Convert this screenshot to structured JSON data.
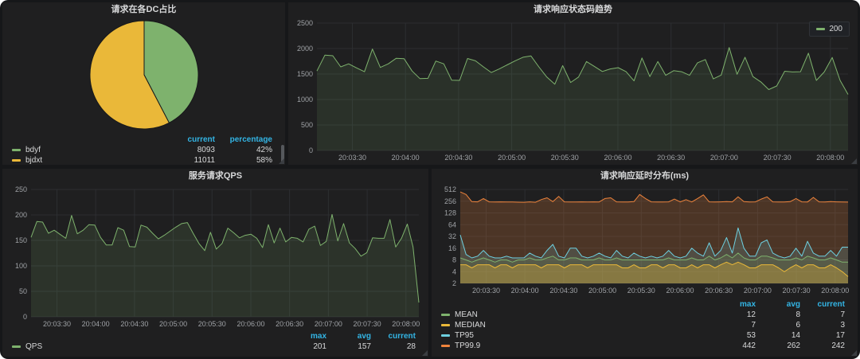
{
  "colors": {
    "background": "#161719",
    "panel": "#1f1f20",
    "grid": "#2c2e31",
    "axis_text": "#9fa2a6",
    "title_text": "#d8d9da",
    "legend_header": "#33b5e5",
    "green": "#7EB26D",
    "yellow": "#EAB839",
    "blue": "#6ED0E0",
    "orange": "#EF843C"
  },
  "panels": {
    "pie": {
      "title": "请求在各DC占比",
      "legend": {
        "headers": [
          "current",
          "percentage"
        ],
        "rows": [
          {
            "label": "bdyf",
            "color": "#7EB26D",
            "values": [
              "8093",
              "42%"
            ]
          },
          {
            "label": "bjdxt",
            "color": "#EAB839",
            "values": [
              "11011",
              "58%"
            ]
          }
        ]
      }
    },
    "status": {
      "title": "请求响应状态码趋势",
      "legend_items": [
        {
          "label": "200",
          "color": "#7EB26D"
        }
      ]
    },
    "qps": {
      "title": "服务请求QPS",
      "legend": {
        "headers": [
          "max",
          "avg",
          "current"
        ],
        "rows": [
          {
            "label": "QPS",
            "color": "#7EB26D",
            "values": [
              "201",
              "157",
              "28"
            ]
          }
        ]
      }
    },
    "latency": {
      "title": "请求响应延时分布(ms)",
      "legend": {
        "headers": [
          "max",
          "avg",
          "current"
        ],
        "rows": [
          {
            "label": "MEAN",
            "color": "#7EB26D",
            "values": [
              "12",
              "8",
              "7"
            ]
          },
          {
            "label": "MEDIAN",
            "color": "#EAB839",
            "values": [
              "7",
              "6",
              "3"
            ]
          },
          {
            "label": "TP95",
            "color": "#6ED0E0",
            "values": [
              "53",
              "14",
              "17"
            ]
          },
          {
            "label": "TP99.9",
            "color": "#EF843C",
            "values": [
              "442",
              "262",
              "242"
            ]
          }
        ]
      }
    }
  },
  "chart_data": [
    {
      "id": "pie_dc",
      "type": "pie",
      "title": "请求在各DC占比",
      "labels": [
        "bdyf",
        "bjdxt"
      ],
      "values": [
        8093,
        11011
      ],
      "percentages": [
        42,
        58
      ],
      "colors": [
        "#7EB26D",
        "#EAB839"
      ],
      "legend_position": "bottom-table"
    },
    {
      "id": "status_200",
      "type": "line",
      "title": "请求响应状态码趋势",
      "yscale": "linear",
      "ylim": [
        0,
        2500
      ],
      "yticks": [
        0,
        500,
        1000,
        1500,
        2000,
        2500
      ],
      "grid": true,
      "legend_position": "top-right-box",
      "x_ticks": [
        "20:03:30",
        "20:04:00",
        "20:04:30",
        "20:05:00",
        "20:05:30",
        "20:06:00",
        "20:06:30",
        "20:07:00",
        "20:07:30",
        "20:08:00"
      ],
      "series": [
        {
          "name": "200",
          "color": "#7EB26D",
          "fill_opacity": 0.12,
          "values": [
            1560,
            1870,
            1860,
            1640,
            1700,
            1620,
            1545,
            1990,
            1630,
            1700,
            1810,
            1800,
            1560,
            1410,
            1415,
            1755,
            1700,
            1380,
            1375,
            1805,
            1760,
            1640,
            1530,
            1600,
            1680,
            1760,
            1830,
            1855,
            1640,
            1440,
            1300,
            1665,
            1335,
            1440,
            1745,
            1650,
            1550,
            1600,
            1625,
            1545,
            1365,
            1815,
            1450,
            1745,
            1475,
            1565,
            1545,
            1475,
            1720,
            1785,
            1405,
            1480,
            2020,
            1495,
            1830,
            1450,
            1345,
            1195,
            1265,
            1555,
            1540,
            1545,
            1910,
            1375,
            1540,
            1825,
            1375,
            1100
          ]
        }
      ]
    },
    {
      "id": "qps",
      "type": "line",
      "title": "服务请求QPS",
      "yscale": "linear",
      "ylim": [
        0,
        250
      ],
      "yticks": [
        0,
        50,
        100,
        150,
        200,
        250
      ],
      "grid": true,
      "legend_position": "bottom-table",
      "x_ticks": [
        "20:03:30",
        "20:04:00",
        "20:04:30",
        "20:05:00",
        "20:05:30",
        "20:06:00",
        "20:06:30",
        "20:07:00",
        "20:07:30",
        "20:08:00"
      ],
      "series": [
        {
          "name": "QPS",
          "color": "#7EB26D",
          "fill_opacity": 0.14,
          "values": [
            156,
            187,
            186,
            164,
            170,
            162,
            154,
            199,
            163,
            170,
            181,
            180,
            156,
            141,
            141,
            175,
            170,
            138,
            137,
            180,
            176,
            164,
            153,
            160,
            168,
            176,
            183,
            185,
            164,
            144,
            130,
            166,
            133,
            144,
            174,
            165,
            155,
            160,
            162,
            154,
            136,
            181,
            145,
            174,
            147,
            156,
            154,
            147,
            172,
            178,
            140,
            148,
            201,
            149,
            183,
            145,
            134,
            119,
            126,
            155,
            154,
            154,
            191,
            137,
            154,
            182,
            137,
            28
          ]
        }
      ]
    },
    {
      "id": "latency",
      "type": "line",
      "title": "请求响应延时分布(ms)",
      "yscale": "log2",
      "ylim": [
        2,
        512
      ],
      "yticks": [
        2,
        4,
        8,
        16,
        32,
        64,
        128,
        256,
        512
      ],
      "grid": true,
      "legend_position": "bottom-table",
      "x_ticks": [
        "20:03:30",
        "20:04:00",
        "20:04:30",
        "20:05:00",
        "20:05:30",
        "20:06:00",
        "20:06:30",
        "20:07:00",
        "20:07:30",
        "20:08:00"
      ],
      "series": [
        {
          "name": "TP99.9",
          "color": "#EF843C",
          "fill_opacity": 0.22,
          "values": [
            442,
            380,
            250,
            246,
            300,
            246,
            244,
            246,
            245,
            244,
            241,
            240,
            246,
            240,
            282,
            312,
            250,
            340,
            246,
            244,
            245,
            246,
            244,
            246,
            245,
            300,
            312,
            246,
            244,
            245,
            250,
            380,
            300,
            246,
            245,
            244,
            246,
            290,
            246,
            280,
            245,
            300,
            372,
            246,
            244,
            246,
            250,
            246,
            330,
            250,
            245,
            246,
            290,
            330,
            246,
            244,
            245,
            250,
            300,
            246,
            245,
            320,
            246,
            244,
            250,
            246,
            244,
            242
          ]
        },
        {
          "name": "TP95",
          "color": "#6ED0E0",
          "fill_opacity": 0.16,
          "values": [
            35,
            11,
            9,
            10,
            14,
            10,
            9,
            9,
            10,
            9,
            9,
            9,
            12,
            10,
            9,
            14,
            20,
            10,
            9,
            16,
            16,
            10,
            9,
            10,
            12,
            10,
            9,
            14,
            10,
            9,
            12,
            10,
            9,
            10,
            9,
            10,
            14,
            10,
            9,
            10,
            16,
            12,
            10,
            22,
            10,
            14,
            30,
            12,
            53,
            16,
            10,
            10,
            22,
            26,
            12,
            10,
            9,
            10,
            16,
            10,
            24,
            12,
            10,
            10,
            14,
            10,
            17,
            17
          ]
        },
        {
          "name": "MEAN",
          "color": "#7EB26D",
          "fill_opacity": 0.14,
          "values": [
            9,
            8,
            7,
            8,
            9,
            8,
            7,
            8,
            8,
            7,
            8,
            8,
            9,
            8,
            8,
            9,
            10,
            8,
            8,
            9,
            9,
            8,
            8,
            8,
            9,
            8,
            8,
            9,
            8,
            8,
            8,
            8,
            8,
            8,
            8,
            8,
            9,
            8,
            8,
            8,
            9,
            8,
            8,
            10,
            8,
            9,
            11,
            9,
            12,
            9,
            8,
            8,
            10,
            10,
            9,
            8,
            8,
            8,
            9,
            8,
            10,
            9,
            8,
            8,
            9,
            8,
            7,
            7
          ]
        },
        {
          "name": "MEDIAN",
          "color": "#EAB839",
          "fill_opacity": 0.32,
          "values": [
            6,
            6,
            5,
            6,
            6,
            6,
            5,
            6,
            6,
            5,
            6,
            6,
            6,
            6,
            5,
            6,
            6,
            6,
            5,
            6,
            6,
            6,
            5,
            6,
            6,
            6,
            6,
            6,
            5,
            5,
            6,
            5,
            5,
            6,
            6,
            5,
            6,
            6,
            5,
            5,
            6,
            5,
            6,
            6,
            5,
            6,
            7,
            6,
            7,
            6,
            5,
            5,
            6,
            6,
            6,
            5,
            4,
            5,
            6,
            5,
            6,
            6,
            5,
            5,
            6,
            5,
            4,
            3
          ]
        }
      ]
    }
  ]
}
